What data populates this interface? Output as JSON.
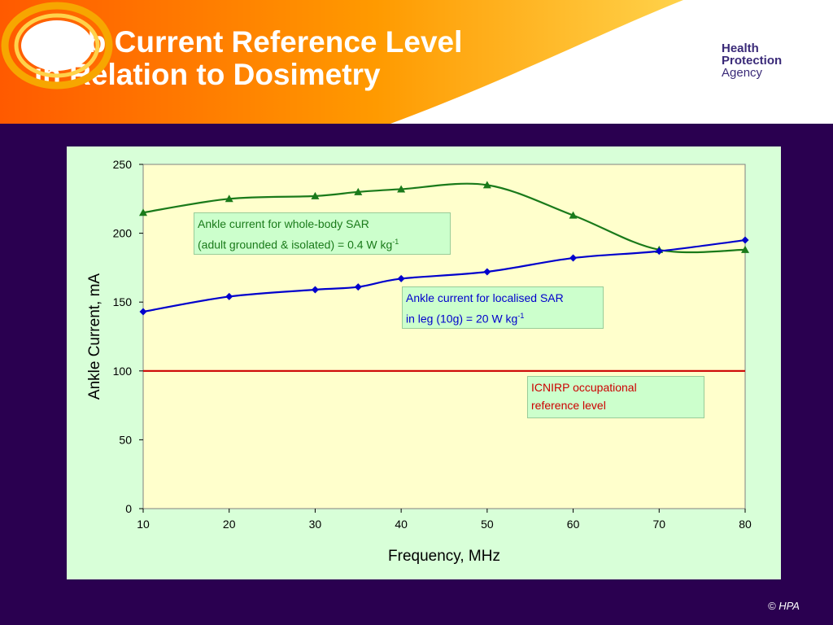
{
  "header": {
    "title_line1": "Limb Current Reference Level",
    "title_line2": "in Relation to Dosimetry"
  },
  "logo": {
    "line1": "Health",
    "line2": "Protection",
    "line3": "Agency"
  },
  "footer": {
    "copyright": "© HPA"
  },
  "colors": {
    "background": "#2a0050",
    "plot_area": "#ffffcc",
    "chart_panel": "#d8ffd8",
    "whole_body_series": "#1a7a1a",
    "localised_series": "#0000cc",
    "icnirp_series": "#cc0000"
  },
  "annotations": {
    "whole_body_line1": "Ankle current for whole-body SAR",
    "whole_body_line2": "(adult grounded & isolated) = 0.4 W kg",
    "whole_body_sup": "-1",
    "localised_line1": "Ankle current for localised SAR",
    "localised_line2": "in leg (10g) = 20 W kg",
    "localised_sup": "-1",
    "icnirp_line1": "ICNIRP occupational",
    "icnirp_line2": "reference level"
  },
  "chart_data": {
    "type": "line",
    "xlabel": "Frequency, MHz",
    "ylabel": "Ankle Current, mA",
    "xlim": [
      10,
      80
    ],
    "ylim": [
      0,
      250
    ],
    "x_ticks": [
      10,
      20,
      30,
      40,
      50,
      60,
      70,
      80
    ],
    "y_ticks": [
      0,
      50,
      100,
      150,
      200,
      250
    ],
    "grid": false,
    "series": [
      {
        "key": "whole_body",
        "marker": "triangle",
        "color": "#1a7a1a",
        "x": [
          10,
          20,
          30,
          35,
          40,
          50,
          60,
          70,
          80
        ],
        "y": [
          215,
          225,
          227,
          230,
          232,
          235,
          213,
          188,
          188
        ]
      },
      {
        "key": "localised",
        "marker": "diamond",
        "color": "#0000cc",
        "x": [
          10,
          20,
          30,
          35,
          40,
          50,
          60,
          70,
          80
        ],
        "y": [
          143,
          154,
          159,
          161,
          167,
          172,
          182,
          187,
          195
        ]
      },
      {
        "key": "icnirp",
        "marker": "none",
        "color": "#cc0000",
        "x": [
          10,
          80
        ],
        "y": [
          100,
          100
        ]
      }
    ]
  }
}
